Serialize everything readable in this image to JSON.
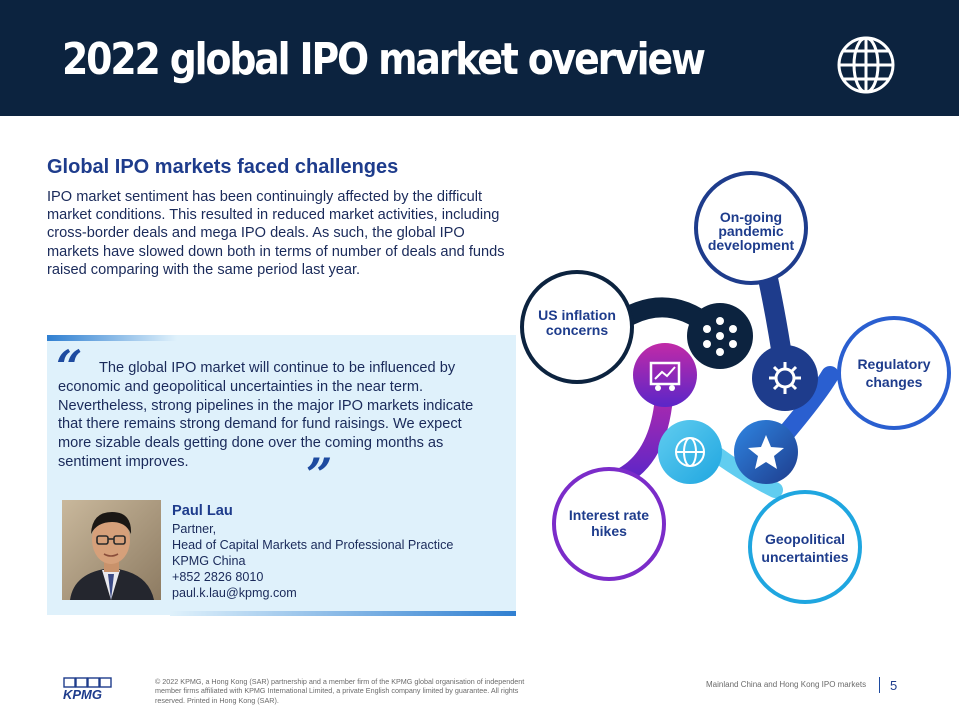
{
  "header": {
    "title": "2022 global IPO market overview",
    "icon": "globe-icon",
    "background": "#0c233f"
  },
  "intro": {
    "heading": "Global IPO markets faced challenges",
    "body": "IPO market sentiment has been continuingly affected by the difficult market conditions. This resulted in reduced market activities, including cross-border deals and mega IPO deals. As such, the global IPO markets have slowed down both in terms of number of deals and funds raised comparing with the same period last year."
  },
  "quote": {
    "open_mark": "“",
    "close_mark": "”",
    "text": "The global IPO market will continue to be influenced by economic and geopolitical uncertainties in the near term. Nevertheless, strong pipelines in the major IPO markets indicate that there remains strong demand for fund raisings. We expect more sizable deals getting done over the coming months as sentiment improves.",
    "background": "#dff1fb"
  },
  "person": {
    "name": "Paul Lau",
    "title": "Partner,",
    "role": "Head of Capital Markets and Professional Practice",
    "company": "KPMG China",
    "phone": "+852 2826 8010",
    "email": "paul.k.lau@kpmg.com"
  },
  "diagram": {
    "nodes": [
      {
        "label_lines": [
          "On-going",
          "pandemic",
          "development"
        ],
        "icon": "virus-icon",
        "color": "#1e3c8c"
      },
      {
        "label_lines": [
          "US inflation",
          "concerns"
        ],
        "icon": "network-icon",
        "color": "#0c233f"
      },
      {
        "label_lines": [
          "Regulatory",
          "changes"
        ],
        "icon": "star-icon",
        "color": "#2a5fd0"
      },
      {
        "label_lines": [
          "Interest rate",
          "hikes"
        ],
        "icon": "presentation-icon",
        "color": "#7b2cc9"
      },
      {
        "label_lines": [
          "Geopolitical",
          "uncertainties"
        ],
        "icon": "world-icon",
        "color": "#1fa6e0"
      }
    ]
  },
  "footer": {
    "logo_text": "KPMG",
    "copyright": "© 2022 KPMG, a Hong Kong (SAR) partnership and a member firm of the KPMG global organisation of independent member firms affiliated with KPMG International Limited, a private English company limited by guarantee. All rights reserved. Printed in Hong Kong (SAR).",
    "reference": "Mainland China and Hong Kong IPO markets",
    "page_number": "5"
  }
}
